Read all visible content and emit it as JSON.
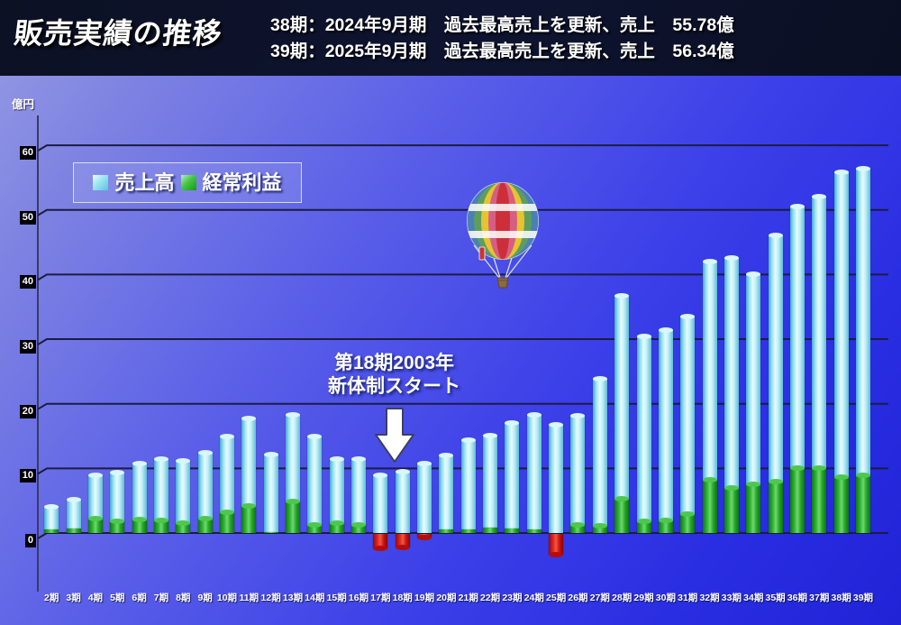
{
  "header": {
    "title": "販売実績の推移",
    "lines": [
      "38期：2024年9月期　過去最高売上を更新、売上　55.78億",
      "39期：2025年9月期　過去最高売上を更新、売上　56.34億"
    ]
  },
  "chart_data": {
    "type": "bar",
    "title": "販売実績の推移",
    "ylabel": "億円",
    "ylim": [
      0,
      60
    ],
    "ytick_interval": 10,
    "grid": true,
    "legend_position": "top-left",
    "categories": [
      "2期",
      "3期",
      "4期",
      "5期",
      "6期",
      "7期",
      "8期",
      "9期",
      "10期",
      "11期",
      "12期",
      "13期",
      "14期",
      "15期",
      "16期",
      "17期",
      "18期",
      "19期",
      "20期",
      "21期",
      "22期",
      "23期",
      "24期",
      "25期",
      "26期",
      "27期",
      "28期",
      "29期",
      "30期",
      "31期",
      "32期",
      "33期",
      "34期",
      "35期",
      "36期",
      "37期",
      "38期",
      "39期"
    ],
    "series": [
      {
        "name": "売上高",
        "color": "#aee6f2",
        "values": [
          4.1,
          5.1,
          9.0,
          9.4,
          10.7,
          11.4,
          11.2,
          12.4,
          15.0,
          17.7,
          12.2,
          18.3,
          14.9,
          11.4,
          11.4,
          8.9,
          9.5,
          10.8,
          12.0,
          14.4,
          15.1,
          17.0,
          18.3,
          16.8,
          18.2,
          23.8,
          36.7,
          30.4,
          31.4,
          33.5,
          42.0,
          42.5,
          40.0,
          46.0,
          50.5,
          52.0,
          55.78,
          56.34
        ]
      },
      {
        "name": "経常利益",
        "color": "#2fae31",
        "values": [
          0.5,
          0.75,
          2.3,
          1.8,
          2.1,
          2.0,
          1.5,
          2.3,
          3.2,
          4.2,
          0.2,
          4.9,
          1.3,
          1.5,
          1.2,
          -2.2,
          -2.1,
          -0.5,
          0.6,
          0.6,
          0.8,
          0.7,
          0.5,
          -3.2,
          1.2,
          1.1,
          5.3,
          1.8,
          2.0,
          2.9,
          8.2,
          7.0,
          7.5,
          8.0,
          10.0,
          10.1,
          8.6,
          9.0
        ]
      }
    ],
    "negative_color": "#d01212",
    "annotation": {
      "lines": [
        "第18期2003年",
        "新体制スタート"
      ],
      "arrow": "down",
      "points_to": "18期"
    },
    "decoration": "hot-air-balloon"
  }
}
